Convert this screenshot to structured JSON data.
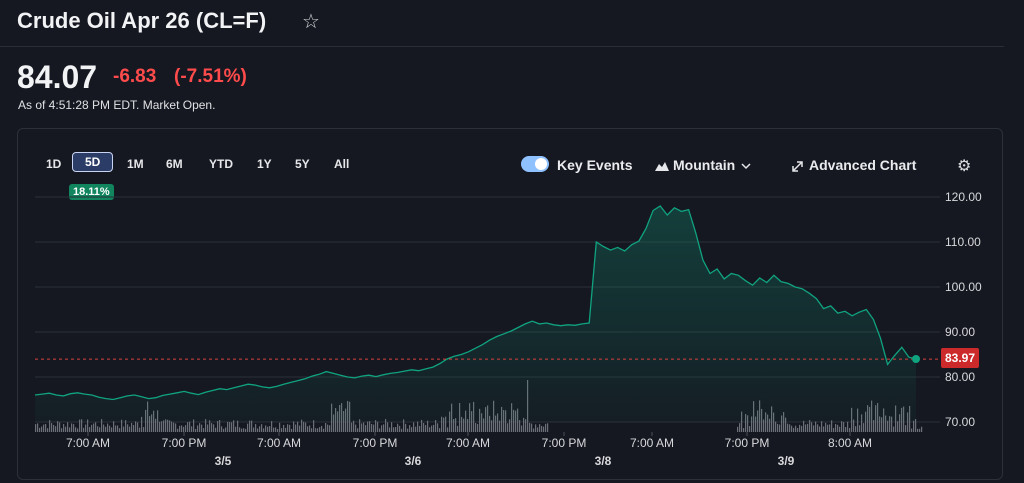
{
  "header": {
    "title": "Crude Oil Apr 26 (CL=F)",
    "star_icon": "☆",
    "price": "84.07",
    "change": "-6.83",
    "change_pct": "(-7.51%)",
    "as_of": "As of 4:51:28 PM EDT. Market Open.",
    "change_color": "#ff4b4b"
  },
  "toolbar": {
    "ranges": [
      "1D",
      "5D",
      "1M",
      "6M",
      "YTD",
      "1Y",
      "5Y",
      "All"
    ],
    "active_range": "5D",
    "range_change": "18.11%",
    "key_events_label": "Key Events",
    "key_events_on": true,
    "chart_type_label": "Mountain",
    "advanced_chart_label": "Advanced Chart",
    "icons": {
      "chart_type": "mountain-icon",
      "dropdown": "chevron-down-icon",
      "advanced": "expand-arrows-icon",
      "settings": "gear-icon"
    }
  },
  "chart_data": {
    "type": "area",
    "y_ticks": [
      "120.00",
      "110.00",
      "100.00",
      "90.00",
      "80.00",
      "70.00"
    ],
    "ylim": [
      70,
      120
    ],
    "x_tick_labels": [
      "7:00 AM",
      "7:00 PM",
      "7:00 AM",
      "7:00 PM",
      "7:00 AM",
      "7:00 PM",
      "7:00 AM",
      "7:00 PM",
      "8:00 AM"
    ],
    "date_labels": [
      "3/5",
      "3/6",
      "3/8",
      "3/9"
    ],
    "last_value": "83.97",
    "reference_line_color": "#d94040",
    "line_color": "#10a37f",
    "grid": true,
    "series": [
      {
        "values": [
          76,
          76.2,
          76.4,
          76,
          75.8,
          76.3,
          76.5,
          76.2,
          76,
          75.5,
          75.2,
          75,
          75.4,
          75.8,
          76,
          75.6,
          75.2,
          75.4,
          75.9,
          76.2,
          76.5,
          76.8,
          76.4,
          76.1,
          76.6,
          77,
          77.4,
          77.2,
          77.6,
          78,
          78.4,
          78.2,
          77.8,
          77.6,
          77.9,
          78.4,
          78.8,
          79.2,
          79.6,
          80.2,
          80.6,
          81.2,
          80.8,
          80.4,
          80,
          79.8,
          80.2,
          80.4,
          80.1,
          80.5,
          80.8,
          81,
          81.3,
          81.6,
          81.4,
          81.8,
          82.2,
          83,
          84,
          84.6,
          85,
          85.6,
          86.4,
          87.2,
          88.2,
          89,
          89.6,
          90.2,
          91,
          91.8,
          92.4,
          91.8,
          92,
          91.6,
          91.4,
          91.6,
          91.5,
          91.8,
          92,
          110,
          109,
          108.2,
          108.8,
          108,
          109.4,
          110.2,
          113,
          117,
          118,
          116,
          117.6,
          116.8,
          117.2,
          112,
          106,
          103,
          104,
          101.8,
          103,
          102.6,
          101.4,
          100.4,
          102,
          101,
          102.6,
          101.2,
          100.8,
          100,
          99.6,
          98.6,
          97.4,
          95.2,
          95.8,
          94.2,
          94.6,
          93.6,
          94.4,
          95,
          92.8,
          88.6,
          82.8,
          84.8,
          86.6,
          84.4,
          84.0
        ]
      }
    ]
  }
}
